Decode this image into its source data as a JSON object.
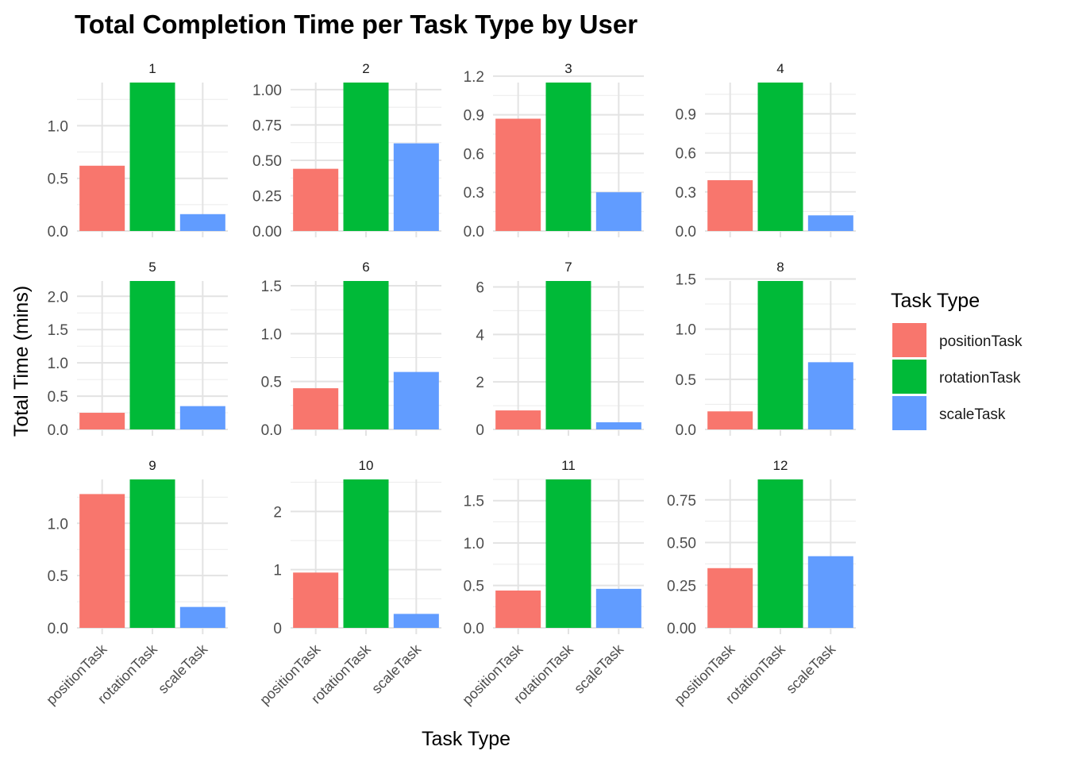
{
  "chart_data": {
    "type": "bar",
    "title": "Total Completion Time per Task Type by User",
    "xlabel": "Task Type",
    "ylabel": "Total Time (mins)",
    "categories": [
      "positionTask",
      "rotationTask",
      "scaleTask"
    ],
    "colors": [
      "#F8766D",
      "#00BA38",
      "#619CFF"
    ],
    "legend": {
      "title": "Task Type",
      "position": "right",
      "items": [
        "positionTask",
        "rotationTask",
        "scaleTask"
      ]
    },
    "grid": true,
    "facets": [
      {
        "label": "1",
        "values": [
          0.62,
          1.41,
          0.16
        ],
        "ylim": [
          0,
          1.41
        ],
        "yticks": [
          "0.0",
          "0.5",
          "1.0"
        ]
      },
      {
        "label": "2",
        "values": [
          0.44,
          1.05,
          0.62
        ],
        "ylim": [
          0,
          1.05
        ],
        "yticks": [
          "0.00",
          "0.25",
          "0.50",
          "0.75",
          "1.00"
        ]
      },
      {
        "label": "3",
        "values": [
          0.87,
          1.15,
          0.3
        ],
        "ylim": [
          0,
          1.15
        ],
        "yticks": [
          "0.0",
          "0.3",
          "0.6",
          "0.9",
          "1.2"
        ]
      },
      {
        "label": "4",
        "values": [
          0.39,
          1.14,
          0.12
        ],
        "ylim": [
          0,
          1.14
        ],
        "yticks": [
          "0.0",
          "0.3",
          "0.6",
          "0.9"
        ]
      },
      {
        "label": "5",
        "values": [
          0.25,
          2.23,
          0.35
        ],
        "ylim": [
          0,
          2.23
        ],
        "yticks": [
          "0.0",
          "0.5",
          "1.0",
          "1.5",
          "2.0"
        ]
      },
      {
        "label": "6",
        "values": [
          0.43,
          1.55,
          0.6
        ],
        "ylim": [
          0,
          1.55
        ],
        "yticks": [
          "0.0",
          "0.5",
          "1.0",
          "1.5"
        ]
      },
      {
        "label": "7",
        "values": [
          0.8,
          6.25,
          0.3
        ],
        "ylim": [
          0,
          6.25
        ],
        "yticks": [
          "0",
          "2",
          "4",
          "6"
        ]
      },
      {
        "label": "8",
        "values": [
          0.18,
          1.48,
          0.67
        ],
        "ylim": [
          0,
          1.48
        ],
        "yticks": [
          "0.0",
          "0.5",
          "1.0",
          "1.5"
        ]
      },
      {
        "label": "9",
        "values": [
          1.28,
          1.42,
          0.2
        ],
        "ylim": [
          0,
          1.42
        ],
        "yticks": [
          "0.0",
          "0.5",
          "1.0"
        ]
      },
      {
        "label": "10",
        "values": [
          0.95,
          2.55,
          0.24
        ],
        "ylim": [
          0,
          2.55
        ],
        "yticks": [
          "0",
          "1",
          "2"
        ]
      },
      {
        "label": "11",
        "values": [
          0.44,
          1.75,
          0.46
        ],
        "ylim": [
          0,
          1.75
        ],
        "yticks": [
          "0.0",
          "0.5",
          "1.0",
          "1.5"
        ]
      },
      {
        "label": "12",
        "values": [
          0.35,
          0.87,
          0.42
        ],
        "ylim": [
          0,
          0.87
        ],
        "yticks": [
          "0.00",
          "0.25",
          "0.50",
          "0.75"
        ]
      }
    ]
  }
}
